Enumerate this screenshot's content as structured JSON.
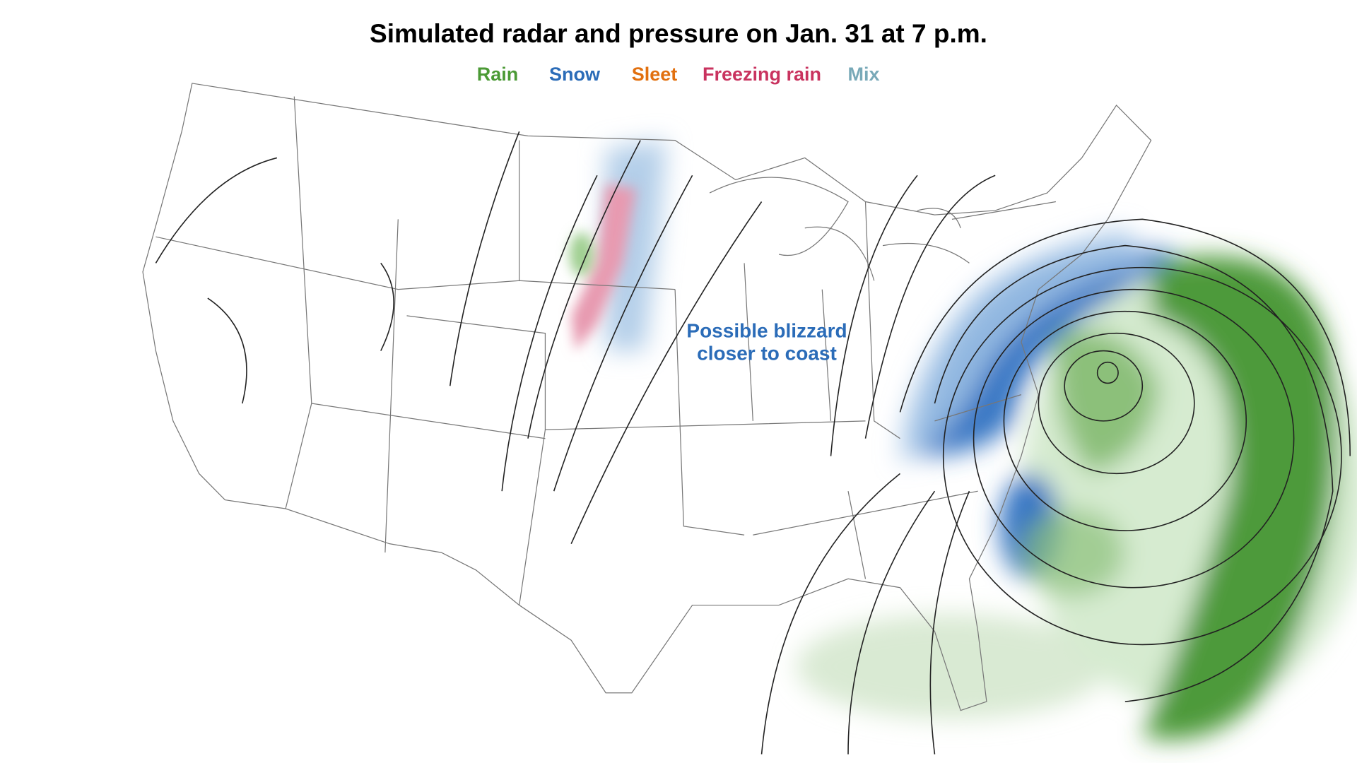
{
  "title": "Simulated radar and pressure on Jan. 31 at 7 p.m.",
  "legend": [
    {
      "label": "Rain",
      "color": "#4b9a35"
    },
    {
      "label": "Snow",
      "color": "#2b6cb8"
    },
    {
      "label": "Sleet",
      "color": "#e2700f"
    },
    {
      "label": "Freezing rain",
      "color": "#c9335f"
    },
    {
      "label": "Mix",
      "color": "#78a9b8"
    }
  ],
  "annotation": {
    "lines": [
      "Possible blizzard",
      "closer to coast"
    ],
    "color": "#2b6cb8"
  }
}
